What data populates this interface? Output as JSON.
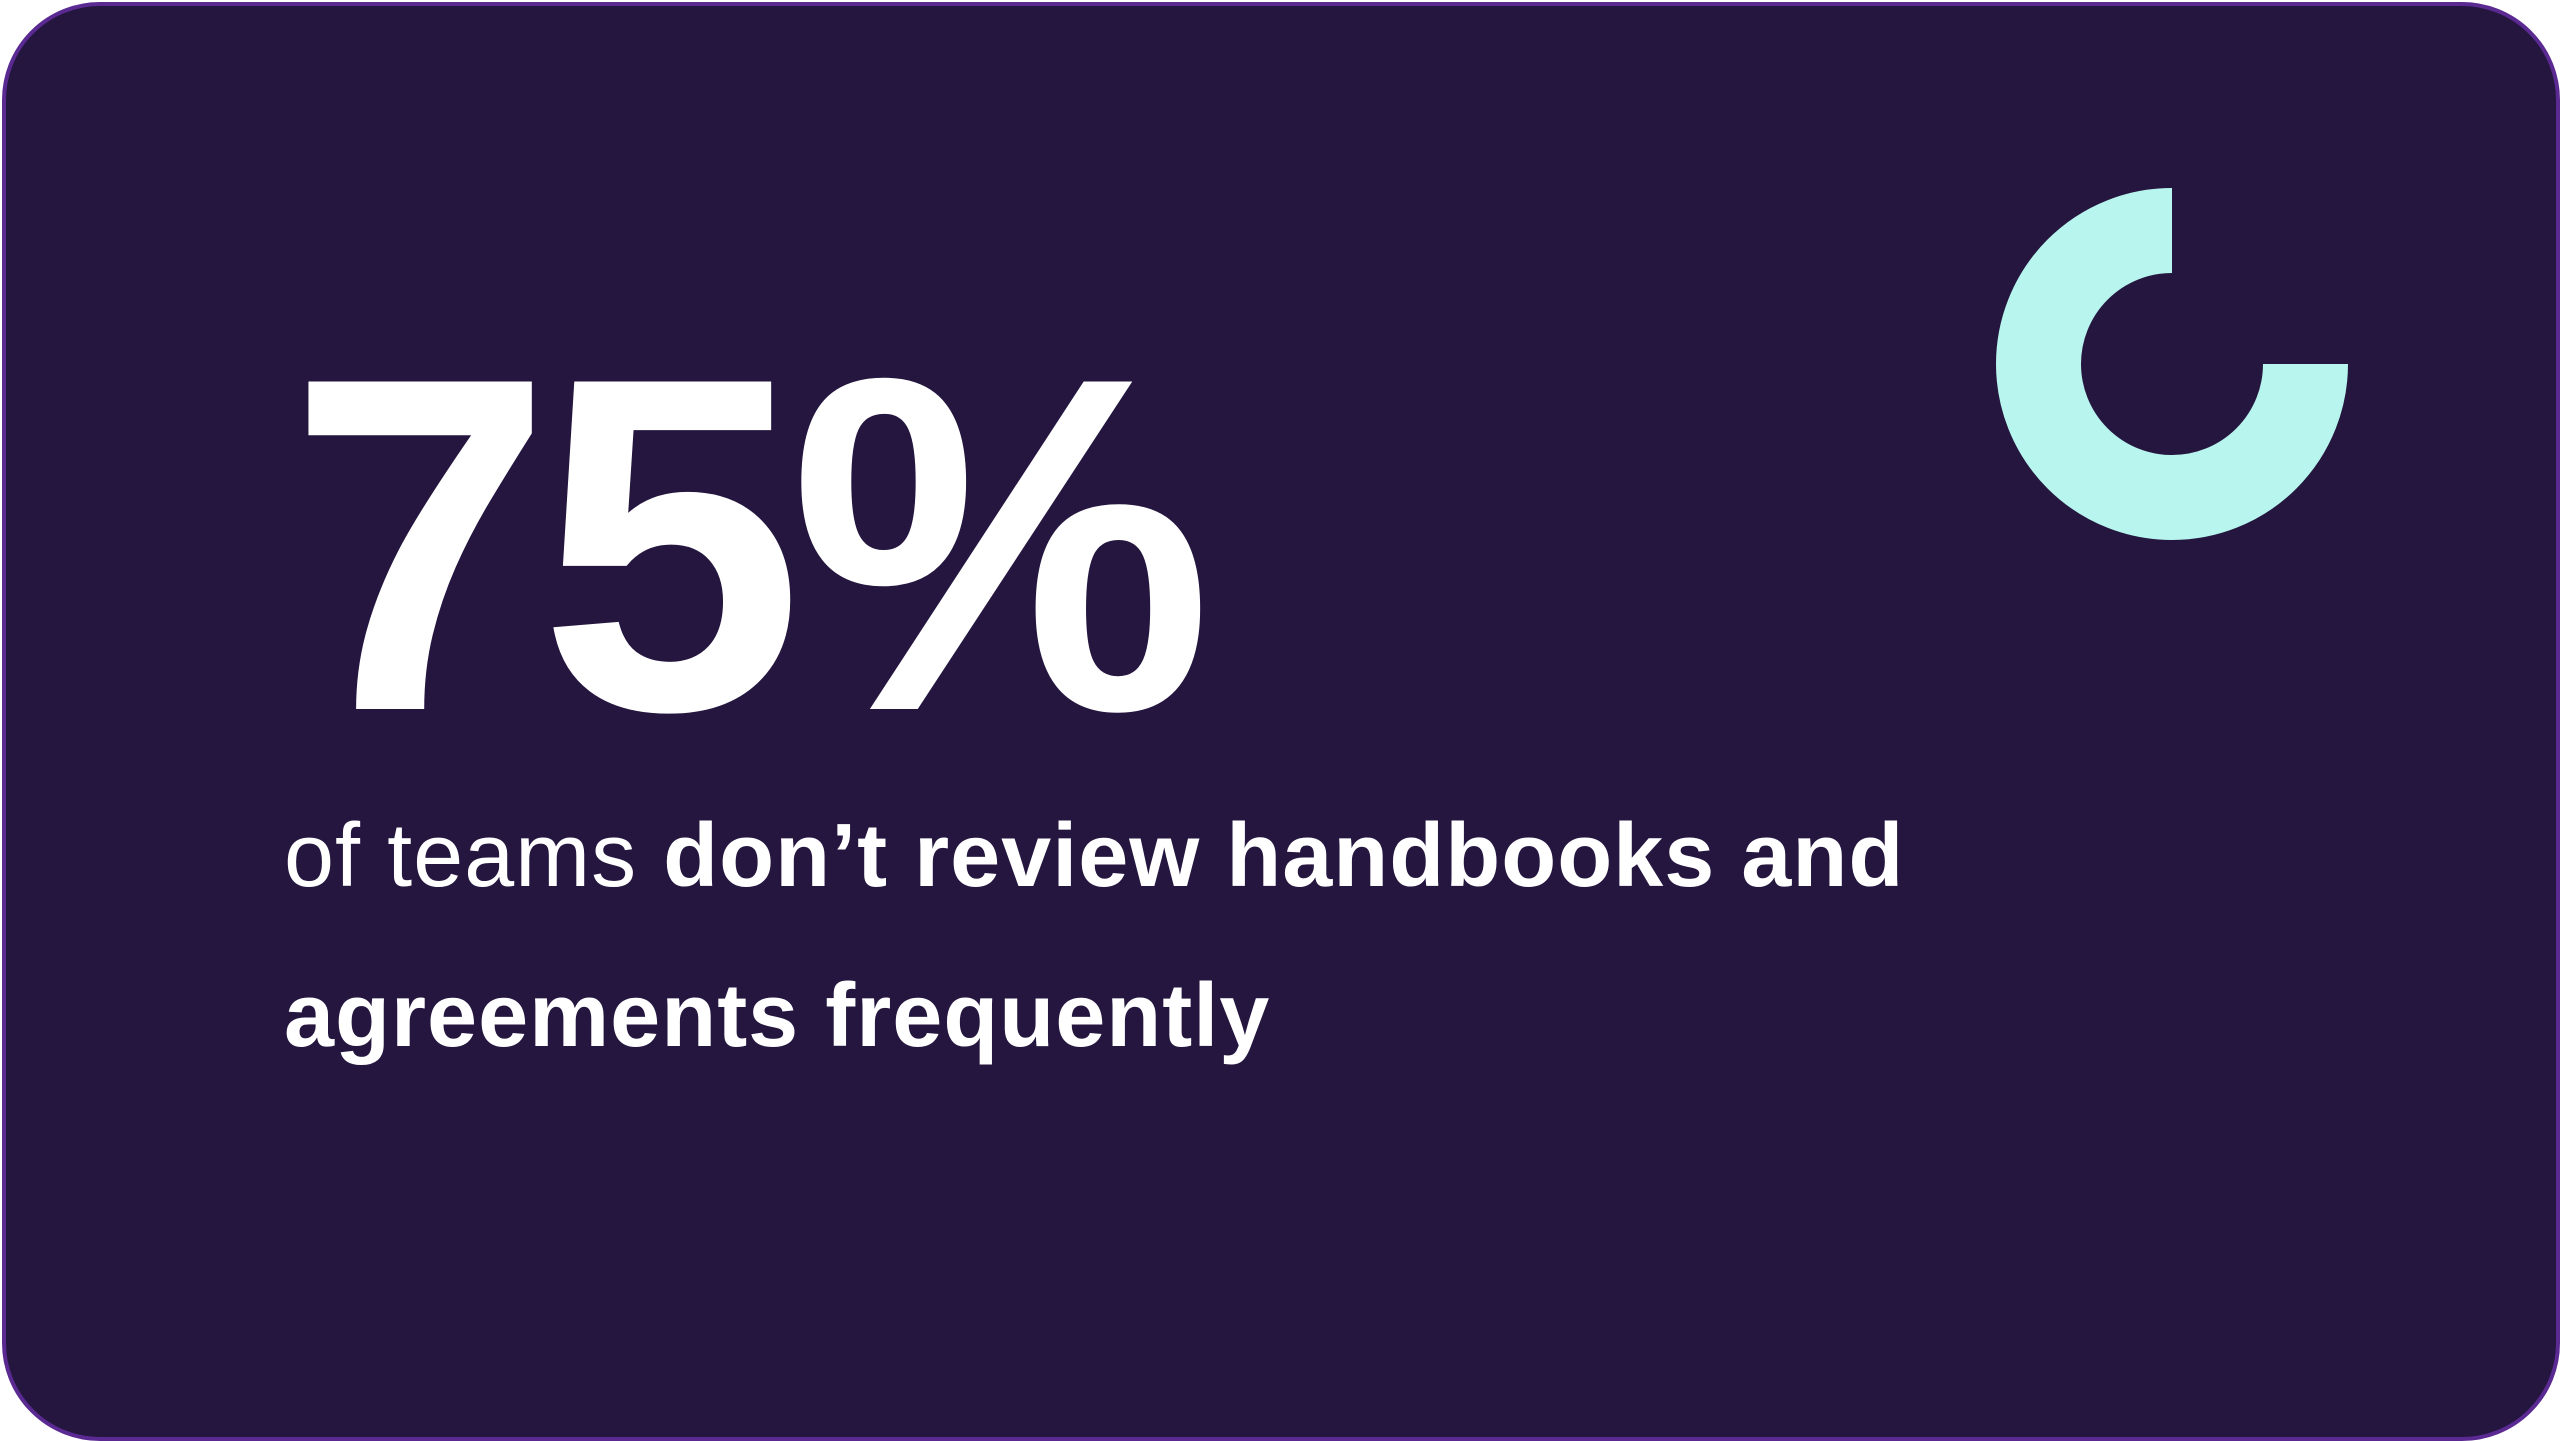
{
  "stat": {
    "value_label": "75%",
    "percent": 75
  },
  "caption": {
    "lead": "of teams ",
    "emphasis": "don’t review handbooks and agreements frequently"
  },
  "colors": {
    "background": "#24163f",
    "border": "#5a2a92",
    "accent": "#b8f5ee",
    "text": "#ffffff"
  },
  "icon": "donut-progress-icon"
}
